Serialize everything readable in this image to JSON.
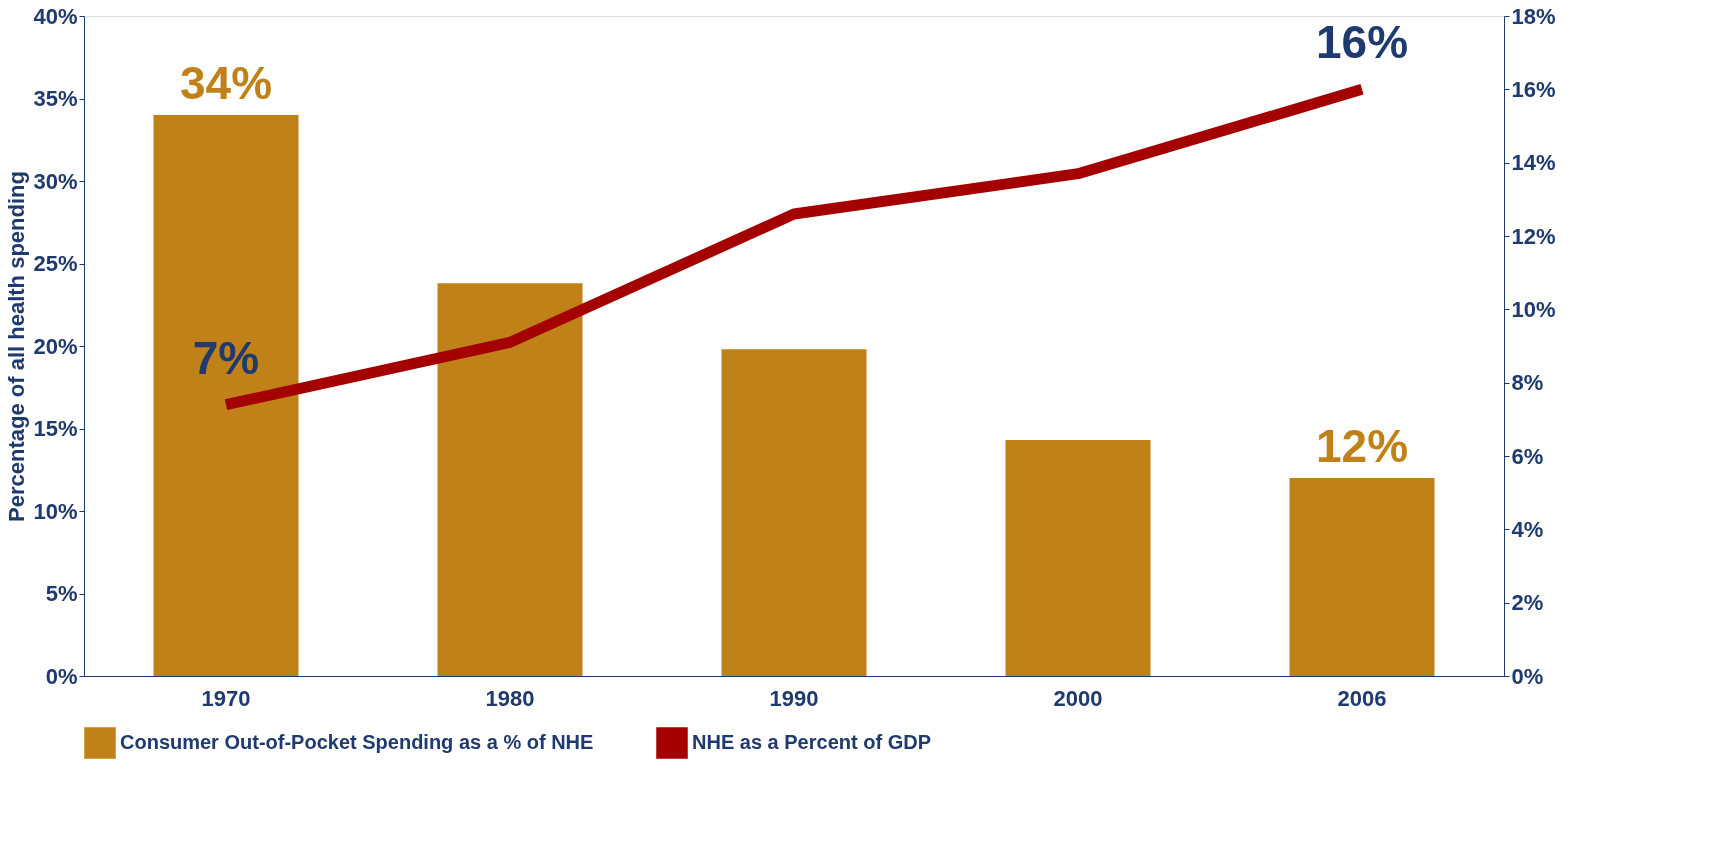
{
  "chart_data": {
    "type": "bar",
    "categories": [
      "1970",
      "1980",
      "1990",
      "2000",
      "2006"
    ],
    "ylabel": "Percentage of all health spending",
    "ylim": [
      0,
      40
    ],
    "yticks": [
      {
        "value": 0,
        "label": "0%"
      },
      {
        "value": 5,
        "label": "5%"
      },
      {
        "value": 10,
        "label": "10%"
      },
      {
        "value": 15,
        "label": "15%"
      },
      {
        "value": 20,
        "label": "20%"
      },
      {
        "value": 25,
        "label": "25%"
      },
      {
        "value": 30,
        "label": "30%"
      },
      {
        "value": 35,
        "label": "35%"
      },
      {
        "value": 40,
        "label": "40%"
      }
    ],
    "y2lim": [
      0,
      18
    ],
    "y2ticks": [
      {
        "value": 0,
        "label": "0%"
      },
      {
        "value": 2,
        "label": "2%"
      },
      {
        "value": 4,
        "label": "4%"
      },
      {
        "value": 6,
        "label": "6%"
      },
      {
        "value": 8,
        "label": "8%"
      },
      {
        "value": 10,
        "label": "10%"
      },
      {
        "value": 12,
        "label": "12%"
      },
      {
        "value": 14,
        "label": "14%"
      },
      {
        "value": 16,
        "label": "16%"
      },
      {
        "value": 18,
        "label": "18%"
      }
    ],
    "series": [
      {
        "name": "Consumer Out-of-Pocket Spending as a % of NHE",
        "color": "#c08218",
        "values": [
          34,
          23.8,
          19.8,
          14.3,
          12
        ],
        "value_labels": [
          "34%",
          null,
          null,
          null,
          "12%"
        ]
      },
      {
        "name": "NHE as a Percent of GDP",
        "type": "line",
        "axis": "y2",
        "color": "#a50000",
        "values": [
          7.4,
          9.1,
          12.6,
          13.7,
          16
        ],
        "value_labels": [
          "7%",
          null,
          null,
          null,
          "16%"
        ]
      }
    ],
    "legend": "bottom",
    "grid": false
  }
}
